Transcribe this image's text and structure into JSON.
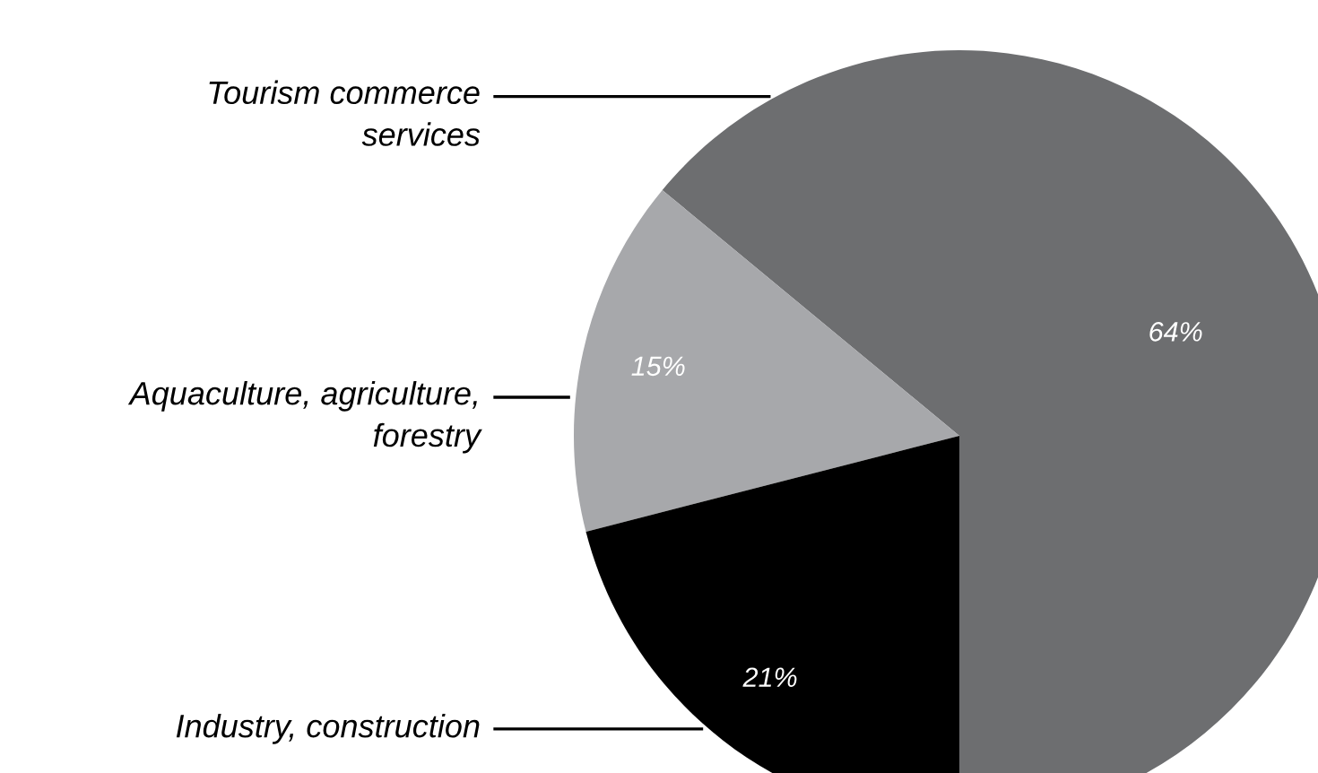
{
  "chart_data": {
    "type": "pie",
    "categories": [
      "Tourism commerce services",
      "Aquaculture, agriculture, forestry",
      "Industry, construction"
    ],
    "values": [
      64,
      15,
      21
    ],
    "colors": [
      "#6d6e70",
      "#a7a8ab",
      "#000000"
    ],
    "value_labels": [
      "64%",
      "15%",
      "21%"
    ],
    "legend": false
  }
}
